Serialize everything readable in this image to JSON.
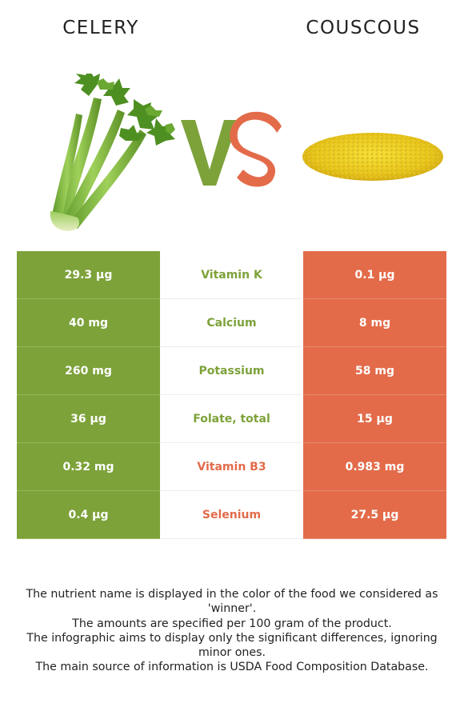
{
  "header": {
    "left_food": "CELERY",
    "right_food": "COUSCOUS"
  },
  "colors": {
    "celery": "#7da23a",
    "couscous": "#e36b4a"
  },
  "images": {
    "left": "celery-image",
    "right": "couscous-image",
    "vs": "vs-logo"
  },
  "rows": [
    {
      "left": "29.3 µg",
      "nutrient": "Vitamin K",
      "right": "0.1 µg",
      "winner": "celery"
    },
    {
      "left": "40 mg",
      "nutrient": "Calcium",
      "right": "8 mg",
      "winner": "celery"
    },
    {
      "left": "260 mg",
      "nutrient": "Potassium",
      "right": "58 mg",
      "winner": "celery"
    },
    {
      "left": "36 µg",
      "nutrient": "Folate, total",
      "right": "15 µg",
      "winner": "celery"
    },
    {
      "left": "0.32 mg",
      "nutrient": "Vitamin B3",
      "right": "0.983 mg",
      "winner": "couscous"
    },
    {
      "left": "0.4 µg",
      "nutrient": "Selenium",
      "right": "27.5 µg",
      "winner": "couscous"
    }
  ],
  "notes": [
    "The nutrient name is displayed in the color of the food we considered as 'winner'.",
    "The amounts are specified per 100 gram of the product.",
    "The infographic aims to display only the significant differences, ignoring minor ones.",
    "The main source of information is USDA Food Composition Database."
  ]
}
